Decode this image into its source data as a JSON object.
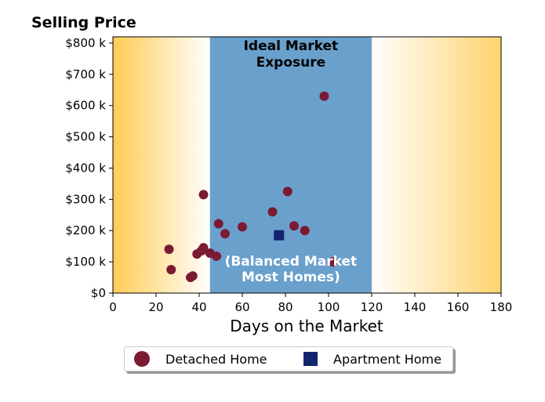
{
  "chart_data": {
    "type": "scatter",
    "title": "Selling Price",
    "xlabel": "Days on the Market",
    "ylabel": "",
    "xlim": [
      0,
      180
    ],
    "ylim": [
      0,
      820000
    ],
    "x_ticks": [
      0,
      20,
      40,
      60,
      80,
      100,
      120,
      140,
      160,
      180
    ],
    "x_tick_labels": [
      "0",
      "20",
      "40",
      "60",
      "80",
      "100",
      "120",
      "140",
      "160",
      "180"
    ],
    "y_ticks": [
      0,
      100000,
      200000,
      300000,
      400000,
      500000,
      600000,
      700000,
      800000
    ],
    "y_tick_labels": [
      "$0",
      "$100 k",
      "$200 k",
      "$300 k",
      "$400 k",
      "$500 k",
      "$600 k",
      "$700 k",
      "$800 k"
    ],
    "grid": false,
    "legend_position": "bottom-center",
    "shaded_region": {
      "x_range": [
        45,
        120
      ],
      "color": "#6aa0cc",
      "label_lines": [
        "Ideal Market",
        "Exposure"
      ],
      "inner_label_lines": [
        "(Balanced Market",
        "Most Homes)"
      ]
    },
    "background_gradient_color": "#ffcc55",
    "series": [
      {
        "name": "Detached Home",
        "marker": "circle",
        "color": "#7b1a33",
        "points": [
          [
            26,
            140000
          ],
          [
            27,
            75000
          ],
          [
            36,
            50000
          ],
          [
            37,
            55000
          ],
          [
            39,
            125000
          ],
          [
            41,
            135000
          ],
          [
            42,
            145000
          ],
          [
            42,
            315000
          ],
          [
            45,
            128000
          ],
          [
            48,
            118000
          ],
          [
            49,
            222000
          ],
          [
            52,
            190000
          ],
          [
            60,
            212000
          ],
          [
            74,
            260000
          ],
          [
            81,
            325000
          ],
          [
            84,
            215000
          ],
          [
            89,
            200000
          ],
          [
            98,
            630000
          ],
          [
            102,
            100000
          ]
        ]
      },
      {
        "name": "Apartment Home",
        "marker": "square",
        "color": "#13246e",
        "points": [
          [
            77,
            185000
          ]
        ]
      }
    ]
  }
}
